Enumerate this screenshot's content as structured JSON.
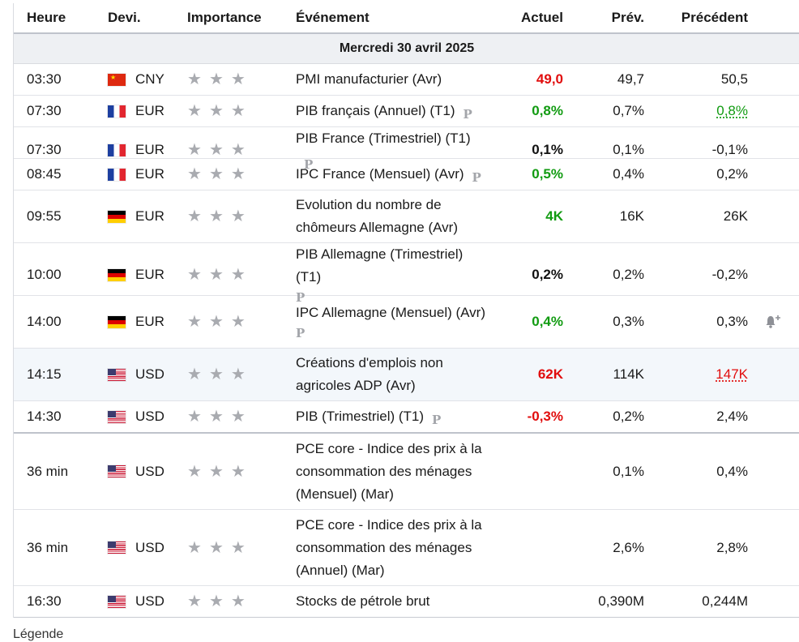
{
  "headers": {
    "time": "Heure",
    "currency": "Devi.",
    "importance": "Importance",
    "event": "Événement",
    "actual": "Actuel",
    "forecast": "Prév.",
    "previous": "Précédent"
  },
  "date_label": "Mercredi 30 avril 2025",
  "icons": {
    "star": "star-icon",
    "prelim": "preliminary-p-icon",
    "alert": "bell-plus-icon"
  },
  "colors": {
    "positive": "#119b11",
    "negative": "#e10d0d"
  },
  "rows": [
    {
      "time": "03:30",
      "currency": "CNY",
      "event": "PMI manufacturier (Avr)",
      "actual": "49,0",
      "forecast": "49,7",
      "previous": "50,5"
    },
    {
      "time": "07:30",
      "currency": "EUR",
      "event": "PIB français (Annuel) (T1)",
      "prelim": "P",
      "actual": "0,8%",
      "forecast": "0,7%",
      "previous": "0,8%"
    },
    {
      "time": "07:30",
      "currency": "EUR",
      "event": "PIB France (Trimestriel) (T1)",
      "prelim": "P",
      "actual": "0,1%",
      "forecast": "0,1%",
      "previous": "-0,1%"
    },
    {
      "time": "08:45",
      "currency": "EUR",
      "event": "IPC France (Mensuel) (Avr)",
      "prelim": "P",
      "actual": "0,5%",
      "forecast": "0,4%",
      "previous": "0,2%"
    },
    {
      "time": "09:55",
      "currency": "EUR",
      "event": "Evolution du nombre de chômeurs Allemagne (Avr)",
      "actual": "4K",
      "forecast": "16K",
      "previous": "26K"
    },
    {
      "time": "10:00",
      "currency": "EUR",
      "event": "PIB Allemagne (Trimestriel) (T1)",
      "prelim": "P",
      "actual": "0,2%",
      "forecast": "0,2%",
      "previous": "-0,2%"
    },
    {
      "time": "14:00",
      "currency": "EUR",
      "event": "IPC Allemagne (Mensuel) (Avr)",
      "prelim": "P",
      "actual": "0,4%",
      "forecast": "0,3%",
      "previous": "0,3%"
    },
    {
      "time": "14:15",
      "currency": "USD",
      "event": "Créations d'emplois non agricoles ADP (Avr)",
      "actual": "62K",
      "forecast": "114K",
      "previous": "147K"
    },
    {
      "time": "14:30",
      "currency": "USD",
      "event": "PIB (Trimestriel) (T1)",
      "prelim": "P",
      "actual": "-0,3%",
      "forecast": "0,2%",
      "previous": "2,4%"
    },
    {
      "time": "36 min",
      "currency": "USD",
      "event": "PCE core - Indice des prix à la consommation des ménages (Mensuel) (Mar)",
      "actual": "",
      "forecast": "0,1%",
      "previous": "0,4%"
    },
    {
      "time": "36 min",
      "currency": "USD",
      "event": "PCE core - Indice des prix à la consommation des ménages (Annuel) (Mar)",
      "actual": "",
      "forecast": "2,6%",
      "previous": "2,8%"
    },
    {
      "time": "16:30",
      "currency": "USD",
      "event": "Stocks de pétrole brut",
      "actual": "",
      "forecast": "0,390M",
      "previous": "0,244M"
    }
  ],
  "footer_text": "Légende"
}
